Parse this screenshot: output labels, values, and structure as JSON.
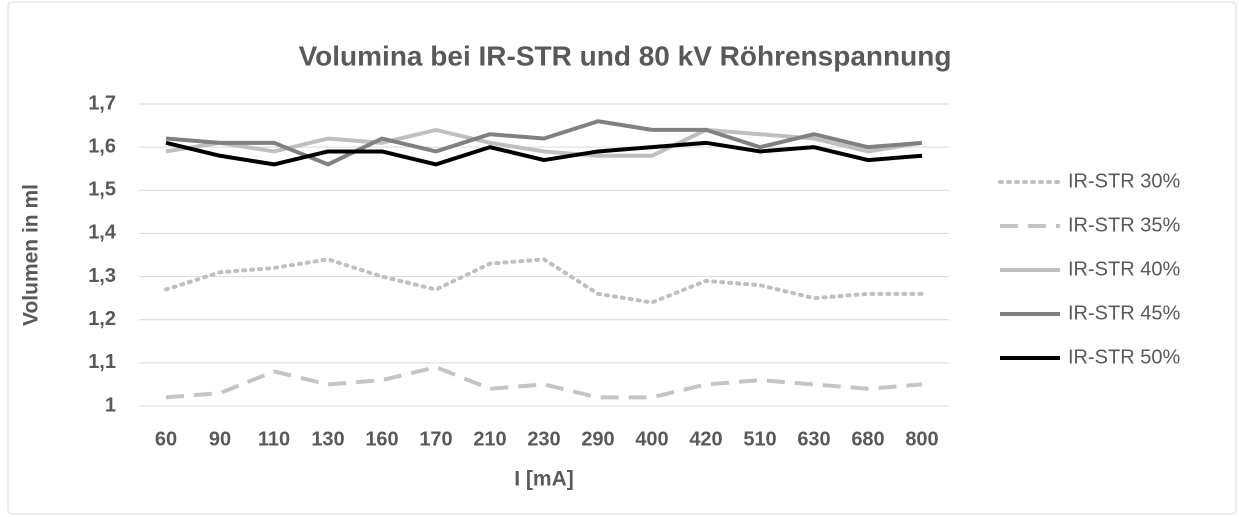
{
  "chart_data": {
    "type": "line",
    "title": "Volumina bei IR-STR und 80 kV Röhrenspannung",
    "x_label": "I [mA]",
    "y_label": "Volumen in ml",
    "categories": [
      "60",
      "90",
      "110",
      "130",
      "160",
      "170",
      "210",
      "230",
      "290",
      "400",
      "420",
      "510",
      "630",
      "680",
      "800"
    ],
    "ylim": [
      1,
      1.7
    ],
    "yticks": [
      1,
      {
        "value": 1.1,
        "label": "1,1"
      },
      {
        "value": 1.2,
        "label": "1,2"
      },
      {
        "value": 1.3,
        "label": "1,3"
      },
      {
        "value": 1.4,
        "label": "1,4"
      },
      {
        "value": 1.5,
        "label": "1,5"
      },
      {
        "value": 1.6,
        "label": "1,6"
      },
      {
        "value": 1.7,
        "label": "1,7"
      }
    ],
    "grid": true,
    "legend": "right",
    "series": [
      {
        "name": "IR-STR 30%",
        "color": "#bfbfbf",
        "style": "dotted",
        "values": [
          1.27,
          1.31,
          1.32,
          1.34,
          1.3,
          1.27,
          1.33,
          1.34,
          1.26,
          1.24,
          1.29,
          1.28,
          1.25,
          1.26,
          1.26
        ]
      },
      {
        "name": "IR-STR 35%",
        "color": "#c4c4c4",
        "style": "dashed",
        "values": [
          1.02,
          1.03,
          1.08,
          1.05,
          1.06,
          1.09,
          1.04,
          1.05,
          1.02,
          1.02,
          1.05,
          1.06,
          1.05,
          1.04,
          1.05
        ]
      },
      {
        "name": "IR-STR 40%",
        "color": "#bfbfbf",
        "style": "solid",
        "values": [
          1.59,
          1.61,
          1.59,
          1.62,
          1.61,
          1.64,
          1.61,
          1.59,
          1.58,
          1.58,
          1.64,
          1.63,
          1.62,
          1.59,
          1.61
        ]
      },
      {
        "name": "IR-STR 45%",
        "color": "#808080",
        "style": "solid",
        "values": [
          1.62,
          1.61,
          1.61,
          1.56,
          1.62,
          1.59,
          1.63,
          1.62,
          1.66,
          1.64,
          1.64,
          1.6,
          1.63,
          1.6,
          1.61
        ]
      },
      {
        "name": "IR-STR 50%",
        "color": "#000000",
        "style": "solid",
        "values": [
          1.61,
          1.58,
          1.56,
          1.59,
          1.59,
          1.56,
          1.6,
          1.57,
          1.59,
          1.6,
          1.61,
          1.59,
          1.6,
          1.57,
          1.58
        ]
      }
    ]
  }
}
